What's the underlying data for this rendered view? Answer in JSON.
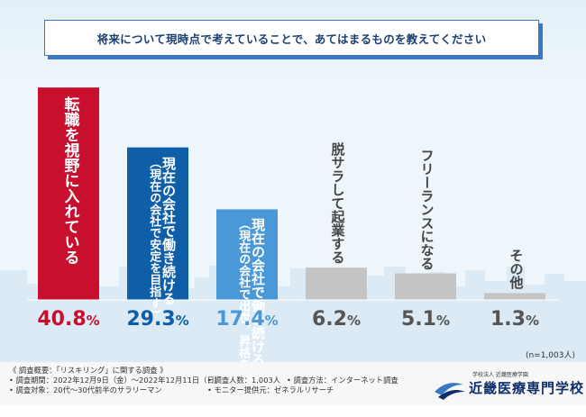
{
  "header": {
    "title": "将来について現時点で考えていることで、あてはまるものを教えてください"
  },
  "chart_data": {
    "type": "bar",
    "title": "将来について現時点で考えていることで、あてはまるものを教えてください",
    "xlabel": "",
    "ylabel": "",
    "ylim": [
      0,
      45
    ],
    "unit": "%",
    "sample_size": "(n=1,003人)",
    "categories": [
      "転職を視野に入れている",
      "現在の会社で働き続ける（現在の会社で安定を目指す）",
      "現在の会社で働き続ける（現在の会社で出世、昇格を目指す）",
      "脱サラして起業する",
      "フリーランスになる",
      "その他"
    ],
    "values": [
      40.8,
      29.3,
      17.4,
      6.2,
      5.1,
      1.3
    ],
    "value_labels": [
      {
        "num": "40.8",
        "pct": "%"
      },
      {
        "num": "29.3",
        "pct": "%"
      },
      {
        "num": "17.4",
        "pct": "%"
      },
      {
        "num": "6.2",
        "pct": "%"
      },
      {
        "num": "5.1",
        "pct": "%"
      },
      {
        "num": "1.3",
        "pct": "%"
      }
    ],
    "bar_text": [
      {
        "main": "転職を視野に入れている",
        "sub": ""
      },
      {
        "main": "現在の会社で働き続ける",
        "sub": "（現在の会社で安定を目指す）"
      },
      {
        "main": "現在の会社で働き続ける",
        "sub": "（現在の会社で出世、昇格を目指す）"
      },
      {
        "main": "脱サラして起業する",
        "sub": ""
      },
      {
        "main": "フリーランスになる",
        "sub": ""
      },
      {
        "main": "その他",
        "sub": ""
      }
    ],
    "colors": [
      "#c8102e",
      "#0f5ea8",
      "#4a98d8",
      "#c4c4c4",
      "#c4c4c4",
      "#c4c4c4"
    ],
    "value_colors": [
      "#c8102e",
      "#0f5ea8",
      "#4a98d8",
      "#555555",
      "#555555",
      "#555555"
    ]
  },
  "footer": {
    "overview": "《 調査概要：「リスキリング」に関する調査 》",
    "period": "• 調査期間：2022年12月9日（金）〜2022年12月11日（日）",
    "target": "• 調査対象：20代〜30代前半のサラリーマン",
    "count": "• 調査人数：1,003人",
    "method": "• 調査方法：インターネット調査",
    "provider": "• モニター提供元：ゼネラルリサーチ"
  },
  "logo": {
    "small_text": "学校法人 近畿医療学園",
    "main_text": "近畿医療専門学校",
    "color": "#0f2f6b"
  }
}
